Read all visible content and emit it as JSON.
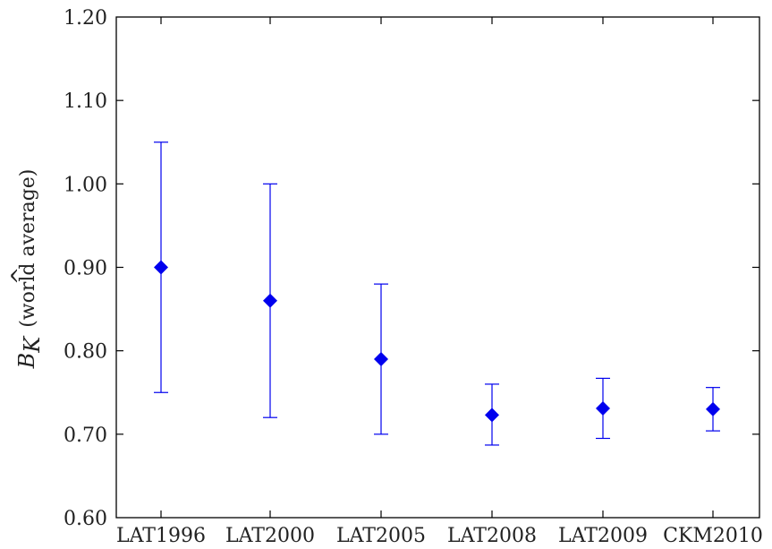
{
  "chart_data": {
    "type": "scatter",
    "title": "",
    "xlabel": "",
    "ylabel": {
      "symbol": "B",
      "hat": "^",
      "subscript": "K",
      "text": "(world average)"
    },
    "ylim": [
      0.6,
      1.2
    ],
    "yticks": [
      "0.60",
      "0.70",
      "0.80",
      "0.90",
      "1.00",
      "1.10",
      "1.20"
    ],
    "categories": [
      "LAT1996",
      "LAT2000",
      "LAT2005",
      "LAT2008",
      "LAT2009",
      "CKM2010"
    ],
    "series": [
      {
        "values": [
          0.9,
          0.86,
          0.79,
          0.723,
          0.731,
          0.73
        ],
        "error_low": [
          0.75,
          0.72,
          0.7,
          0.687,
          0.695,
          0.704
        ],
        "error_high": [
          1.05,
          1.0,
          0.88,
          0.76,
          0.767,
          0.756
        ]
      }
    ],
    "marker": "diamond",
    "color": "#0000ee",
    "grid": false,
    "legend": "none"
  }
}
